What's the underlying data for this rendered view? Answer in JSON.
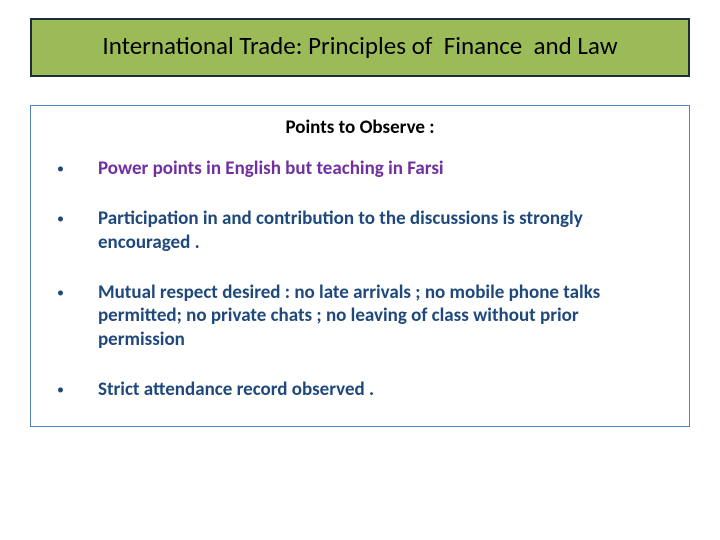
{
  "slide": {
    "title": "International Trade: Principles of  Finance  and Law",
    "title_box": {
      "background_color": "#9bbb59",
      "border_color": "#1f2a3a",
      "title_color": "#000000",
      "title_fontsize": 25
    },
    "content_box": {
      "border_color": "#4f81bd",
      "subtitle": "Points to Observe :",
      "subtitle_fontsize": 19,
      "bullets": [
        {
          "text": "Power points in English but teaching in Farsi",
          "color": "#7030a0"
        },
        {
          "text": "Participation  in  and contribution to the discussions is strongly encouraged .",
          "color": "#1f497d"
        },
        {
          "text": "Mutual respect  desired : no late arrivals ; no mobile phone talks permitted;  no private chats ; no leaving of class without prior permission",
          "color": "#1f497d"
        },
        {
          "text": "Strict  attendance record observed .",
          "color": "#1f497d"
        }
      ],
      "bullet_dot_color": "#1f497d",
      "bullet_fontsize": 19
    },
    "background_color": "#ffffff"
  }
}
